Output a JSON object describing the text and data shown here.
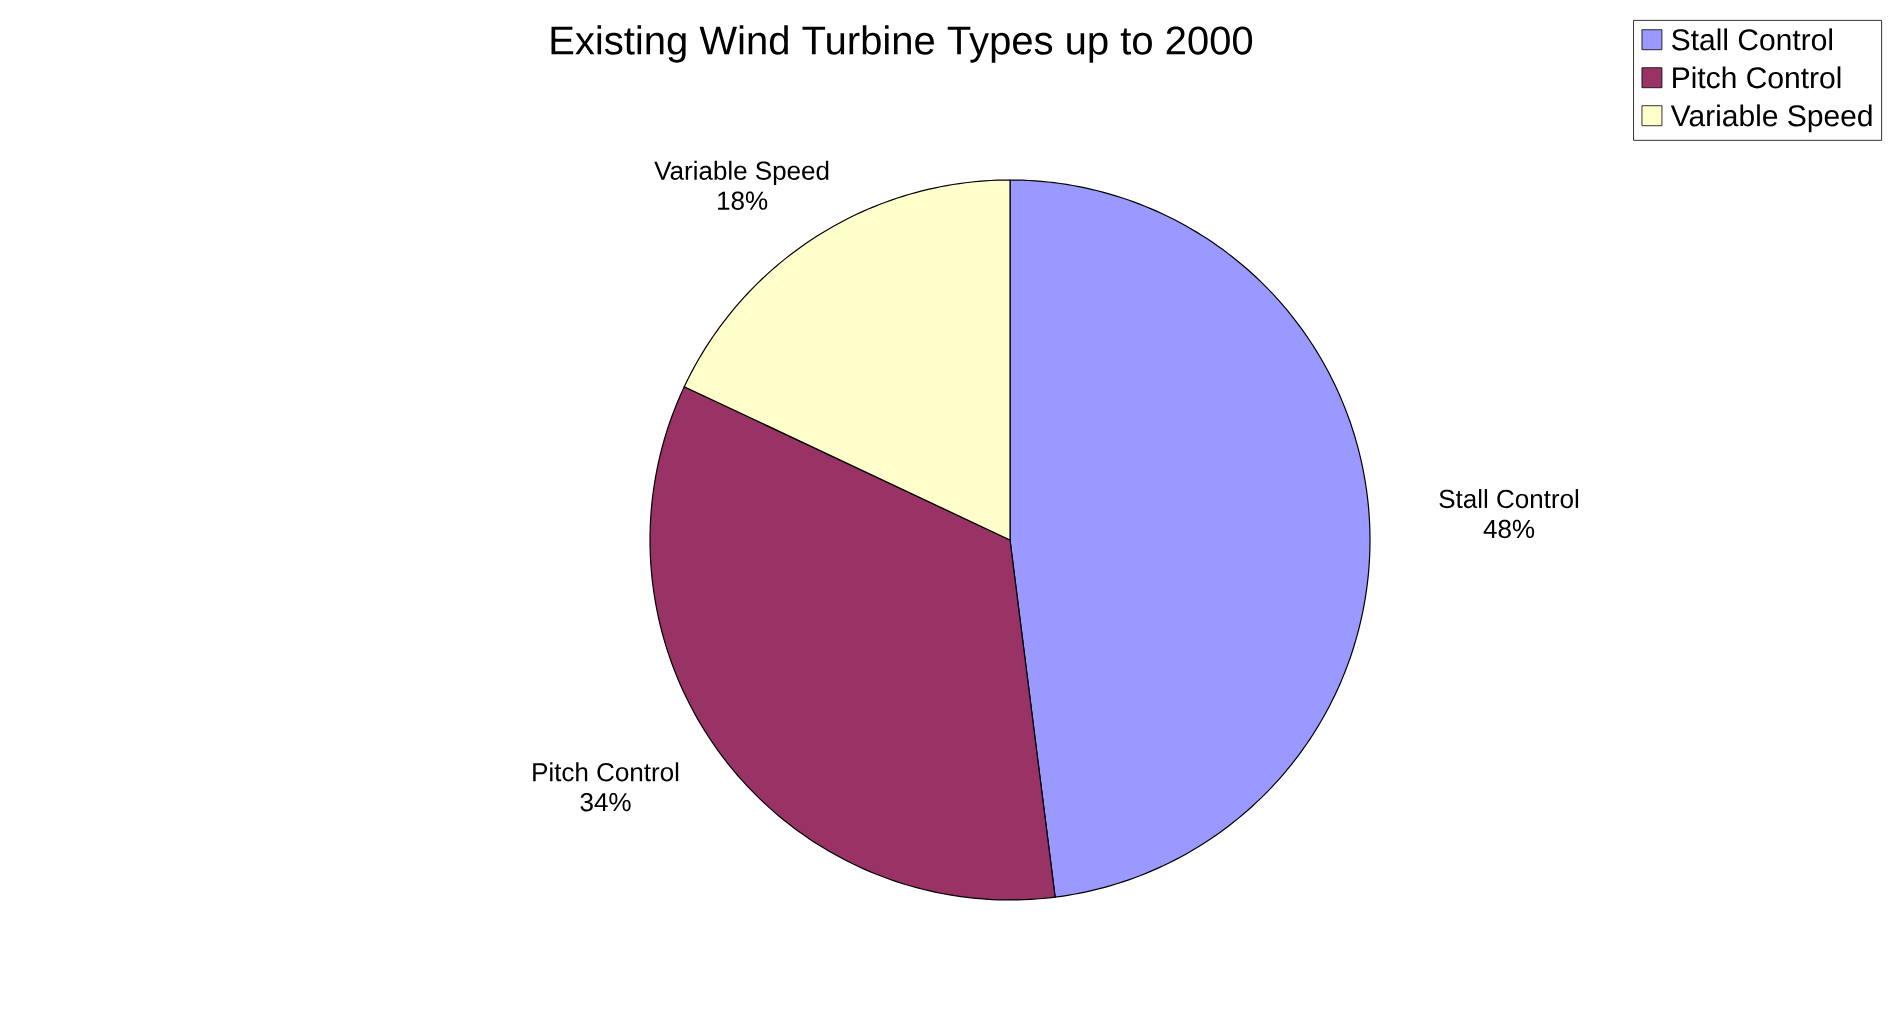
{
  "chart_data": {
    "type": "pie",
    "title": "Existing Wind Turbine Types up to 2000",
    "categories": [
      "Stall Control",
      "Pitch Control",
      "Variable Speed"
    ],
    "values": [
      48,
      34,
      18
    ],
    "colors": [
      "#9999ff",
      "#993366",
      "#ffffcc"
    ],
    "value_labels": [
      "48%",
      "34%",
      "18%"
    ],
    "legend": "top right"
  }
}
